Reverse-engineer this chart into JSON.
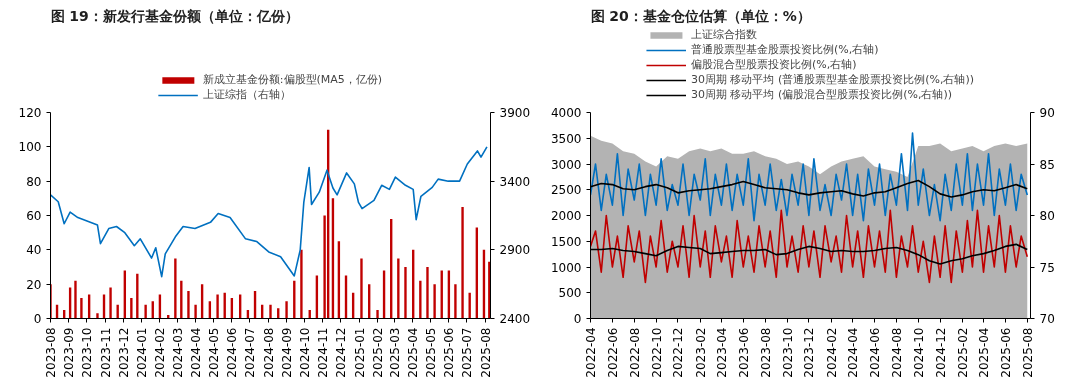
{
  "chart_data": [
    {
      "type": "bar",
      "title": "图 19：新发行基金份额（单位：亿份）",
      "legend": "top",
      "grid": false,
      "xlim": [
        "2023-08-01",
        "2025-08-10"
      ],
      "xticks": [
        {
          "value": "2023-08-01",
          "label": "2023-08"
        },
        {
          "value": "2023-09-01",
          "label": "2023-09"
        },
        {
          "value": "2023-10-01",
          "label": "2023-10"
        },
        {
          "value": "2023-11-01",
          "label": "2023-11"
        },
        {
          "value": "2023-12-01",
          "label": "2023-12"
        },
        {
          "value": "2024-01-01",
          "label": "2024-01"
        },
        {
          "value": "2024-02-01",
          "label": "2024-02"
        },
        {
          "value": "2024-03-01",
          "label": "2024-03"
        },
        {
          "value": "2024-04-01",
          "label": "2024-04"
        },
        {
          "value": "2024-05-01",
          "label": "2024-05"
        },
        {
          "value": "2024-06-01",
          "label": "2024-06"
        },
        {
          "value": "2024-07-01",
          "label": "2024-07"
        },
        {
          "value": "2024-08-01",
          "label": "2024-08"
        },
        {
          "value": "2024-09-01",
          "label": "2024-09"
        },
        {
          "value": "2024-10-01",
          "label": "2024-10"
        },
        {
          "value": "2024-11-01",
          "label": "2024-11"
        },
        {
          "value": "2024-12-01",
          "label": "2024-12"
        },
        {
          "value": "2025-01-01",
          "label": "2025-01"
        },
        {
          "value": "2025-02-01",
          "label": "2025-02"
        },
        {
          "value": "2025-03-01",
          "label": "2025-03"
        },
        {
          "value": "2025-04-01",
          "label": "2025-04"
        },
        {
          "value": "2025-05-01",
          "label": "2025-05"
        },
        {
          "value": "2025-06-01",
          "label": "2025-06"
        },
        {
          "value": "2025-07-01",
          "label": "2025-07"
        },
        {
          "value": "2025-08-01",
          "label": "2025-08"
        }
      ],
      "ylim": [
        0,
        120
      ],
      "yticks": [
        0,
        20,
        40,
        60,
        80,
        100,
        120
      ],
      "y2lim": [
        2400,
        3900
      ],
      "y2ticks": [
        2400,
        2900,
        3400,
        3900
      ],
      "series": [
        {
          "name": "新成立基金份额:偏股型(MA5，亿份)",
          "type": "bar",
          "color": "#c00000",
          "x": [
            "2023-08-01",
            "2023-08-12",
            "2023-08-24",
            "2023-09-03",
            "2023-09-12",
            "2023-09-22",
            "2023-10-05",
            "2023-10-19",
            "2023-10-30",
            "2023-11-10",
            "2023-11-22",
            "2023-12-04",
            "2023-12-15",
            "2023-12-25",
            "2024-01-08",
            "2024-01-20",
            "2024-02-01",
            "2024-02-15",
            "2024-02-27",
            "2024-03-08",
            "2024-03-20",
            "2024-04-01",
            "2024-04-12",
            "2024-04-25",
            "2024-05-08",
            "2024-05-20",
            "2024-06-01",
            "2024-06-15",
            "2024-06-28",
            "2024-07-10",
            "2024-07-22",
            "2024-08-05",
            "2024-08-18",
            "2024-09-01",
            "2024-09-14",
            "2024-09-26",
            "2024-10-10",
            "2024-10-22",
            "2024-11-04",
            "2024-11-10",
            "2024-11-18",
            "2024-11-28",
            "2024-12-10",
            "2024-12-22",
            "2025-01-05",
            "2025-01-18",
            "2025-02-01",
            "2025-02-12",
            "2025-02-24",
            "2025-03-08",
            "2025-03-20",
            "2025-04-02",
            "2025-04-14",
            "2025-04-26",
            "2025-05-08",
            "2025-05-20",
            "2025-06-01",
            "2025-06-12",
            "2025-06-24",
            "2025-07-06",
            "2025-07-18",
            "2025-07-30",
            "2025-08-08"
          ],
          "values": [
            20,
            8,
            5,
            18,
            22,
            12,
            14,
            3,
            14,
            18,
            8,
            28,
            12,
            26,
            8,
            10,
            14,
            2,
            35,
            22,
            16,
            8,
            20,
            10,
            14,
            15,
            12,
            14,
            5,
            16,
            8,
            8,
            6,
            10,
            22,
            40,
            5,
            25,
            60,
            110,
            70,
            45,
            25,
            15,
            35,
            20,
            5,
            28,
            58,
            35,
            30,
            40,
            22,
            30,
            20,
            28,
            28,
            20,
            65,
            15,
            53,
            40,
            33
          ]
        },
        {
          "name": "上证综指（右轴）",
          "type": "line",
          "axis": "y2",
          "color": "#0070c0",
          "x": [
            "2023-08-01",
            "2023-08-14",
            "2023-08-24",
            "2023-09-03",
            "2023-09-16",
            "2023-10-19",
            "2023-10-24",
            "2023-11-07",
            "2023-11-20",
            "2023-12-04",
            "2023-12-20",
            "2023-12-30",
            "2024-01-18",
            "2024-01-25",
            "2024-02-04",
            "2024-02-10",
            "2024-02-27",
            "2024-03-11",
            "2024-03-31",
            "2024-04-26",
            "2024-05-09",
            "2024-05-29",
            "2024-06-24",
            "2024-07-13",
            "2024-08-02",
            "2024-08-22",
            "2024-09-14",
            "2024-09-24",
            "2024-09-30",
            "2024-10-09",
            "2024-10-13",
            "2024-10-26",
            "2024-11-08",
            "2024-11-18",
            "2024-11-25",
            "2024-12-11",
            "2024-12-24",
            "2024-12-31",
            "2025-01-06",
            "2025-01-26",
            "2025-02-08",
            "2025-02-21",
            "2025-03-03",
            "2025-03-20",
            "2025-04-02",
            "2025-04-07",
            "2025-04-15",
            "2025-05-04",
            "2025-05-14",
            "2025-05-31",
            "2025-06-19",
            "2025-07-02",
            "2025-07-19",
            "2025-07-25",
            "2025-08-04"
          ],
          "values": [
            3300,
            3250,
            3090,
            3175,
            3135,
            3080,
            2945,
            3055,
            3070,
            3025,
            2930,
            2980,
            2840,
            2915,
            2705,
            2870,
            2995,
            3070,
            3055,
            3100,
            3165,
            3135,
            2980,
            2960,
            2885,
            2850,
            2710,
            2900,
            3245,
            3500,
            3230,
            3320,
            3480,
            3350,
            3300,
            3460,
            3380,
            3245,
            3200,
            3260,
            3370,
            3340,
            3430,
            3370,
            3340,
            3120,
            3290,
            3355,
            3415,
            3400,
            3400,
            3525,
            3620,
            3575,
            3650
          ]
        }
      ]
    },
    {
      "type": "line",
      "title": "图 20：基金仓位估算（单位：%）",
      "legend": "top",
      "grid": false,
      "xlim": [
        "2022-04-01",
        "2025-08-10"
      ],
      "xticks": [
        {
          "value": "2022-04-01",
          "label": "2022-04"
        },
        {
          "value": "2022-06-01",
          "label": "2022-06"
        },
        {
          "value": "2022-08-01",
          "label": "2022-08"
        },
        {
          "value": "2022-10-01",
          "label": "2022-10"
        },
        {
          "value": "2022-12-01",
          "label": "2022-12"
        },
        {
          "value": "2023-02-01",
          "label": "2023-02"
        },
        {
          "value": "2023-04-01",
          "label": "2023-04"
        },
        {
          "value": "2023-06-01",
          "label": "2023-06"
        },
        {
          "value": "2023-08-01",
          "label": "2023-08"
        },
        {
          "value": "2023-10-01",
          "label": "2023-10"
        },
        {
          "value": "2023-12-01",
          "label": "2023-12"
        },
        {
          "value": "2024-02-01",
          "label": "2024-02"
        },
        {
          "value": "2024-04-01",
          "label": "2024-04"
        },
        {
          "value": "2024-06-01",
          "label": "2024-06"
        },
        {
          "value": "2024-08-01",
          "label": "2024-08"
        },
        {
          "value": "2024-10-01",
          "label": "2024-10"
        },
        {
          "value": "2024-12-01",
          "label": "2024-12"
        },
        {
          "value": "2025-02-01",
          "label": "2025-02"
        },
        {
          "value": "2025-04-01",
          "label": "2025-04"
        },
        {
          "value": "2025-06-01",
          "label": "2025-06"
        },
        {
          "value": "2025-08-01",
          "label": "2025-08"
        }
      ],
      "ylim": [
        0,
        4000
      ],
      "yticks": [
        0,
        500,
        1000,
        1500,
        2000,
        2500,
        3000,
        3500,
        4000
      ],
      "y2lim": [
        70,
        90
      ],
      "y2ticks": [
        70,
        75,
        80,
        85,
        90
      ],
      "x": [
        "2022-04-01",
        "2022-05-01",
        "2022-06-01",
        "2022-07-01",
        "2022-08-01",
        "2022-09-01",
        "2022-10-01",
        "2022-11-01",
        "2022-12-01",
        "2023-01-01",
        "2023-02-01",
        "2023-03-01",
        "2023-04-01",
        "2023-05-01",
        "2023-06-01",
        "2023-07-01",
        "2023-08-01",
        "2023-09-01",
        "2023-10-01",
        "2023-11-01",
        "2023-12-01",
        "2024-01-01",
        "2024-02-01",
        "2024-03-01",
        "2024-04-01",
        "2024-05-01",
        "2024-06-01",
        "2024-07-01",
        "2024-08-01",
        "2024-09-01",
        "2024-10-01",
        "2024-11-01",
        "2024-12-01",
        "2025-01-01",
        "2025-02-01",
        "2025-03-01",
        "2025-04-01",
        "2025-05-01",
        "2025-06-01",
        "2025-07-01",
        "2025-08-01"
      ],
      "series": [
        {
          "name": "上证综合指数",
          "type": "area",
          "color": "#b3b3b3",
          "values": [
            3550,
            3450,
            3400,
            3250,
            3200,
            3050,
            2950,
            3150,
            3100,
            3250,
            3300,
            3250,
            3300,
            3200,
            3200,
            3250,
            3150,
            3100,
            3000,
            3050,
            2950,
            2800,
            2950,
            3050,
            3100,
            3150,
            2950,
            2900,
            2850,
            2750,
            3350,
            3350,
            3400,
            3250,
            3300,
            3350,
            3250,
            3350,
            3400,
            3350,
            3400
          ]
        },
        {
          "name": "普通股票型基金股票投资比例(%,右轴)",
          "axis": "y2",
          "color": "#0070c0",
          "x": [
            "2022-04-01",
            "2022-04-15",
            "2022-05-01",
            "2022-05-15",
            "2022-06-01",
            "2022-06-15",
            "2022-07-01",
            "2022-07-15",
            "2022-08-01",
            "2022-08-15",
            "2022-09-01",
            "2022-09-15",
            "2022-10-01",
            "2022-10-15",
            "2022-11-01",
            "2022-11-15",
            "2022-12-01",
            "2022-12-15",
            "2023-01-01",
            "2023-01-15",
            "2023-02-01",
            "2023-02-15",
            "2023-03-01",
            "2023-03-15",
            "2023-04-01",
            "2023-04-15",
            "2023-05-01",
            "2023-05-15",
            "2023-06-01",
            "2023-06-15",
            "2023-07-01",
            "2023-07-15",
            "2023-08-01",
            "2023-08-15",
            "2023-09-01",
            "2023-09-15",
            "2023-10-01",
            "2023-10-15",
            "2023-11-01",
            "2023-11-15",
            "2023-12-01",
            "2023-12-15",
            "2024-01-01",
            "2024-01-15",
            "2024-02-01",
            "2024-02-15",
            "2024-03-01",
            "2024-03-15",
            "2024-04-01",
            "2024-04-15",
            "2024-05-01",
            "2024-05-15",
            "2024-06-01",
            "2024-06-15",
            "2024-07-01",
            "2024-07-15",
            "2024-08-01",
            "2024-08-15",
            "2024-09-01",
            "2024-09-15",
            "2024-10-01",
            "2024-10-15",
            "2024-11-01",
            "2024-11-15",
            "2024-12-01",
            "2024-12-15",
            "2025-01-01",
            "2025-01-15",
            "2025-02-01",
            "2025-02-15",
            "2025-03-01",
            "2025-03-15",
            "2025-04-01",
            "2025-04-15",
            "2025-05-01",
            "2025-05-15",
            "2025-06-01",
            "2025-06-15",
            "2025-07-01",
            "2025-07-15",
            "2025-08-01"
          ],
          "values": [
            82,
            85,
            80.5,
            84,
            81,
            86,
            80,
            84.5,
            81.5,
            85,
            80,
            84,
            81,
            85.5,
            80.5,
            83,
            81,
            85,
            80,
            84,
            81.5,
            85.5,
            80,
            84,
            81,
            85,
            80.5,
            84,
            81,
            85.5,
            79.5,
            84,
            81,
            85,
            80.5,
            83.5,
            80,
            84,
            81,
            85,
            80,
            85.5,
            80.5,
            83,
            80,
            84,
            81.5,
            85,
            80,
            84,
            79.5,
            84.5,
            81,
            85,
            80,
            84,
            81,
            86,
            80.5,
            88,
            81,
            84.5,
            80,
            83,
            79.5,
            84,
            80.5,
            85,
            81,
            86,
            80.5,
            85,
            81,
            86,
            80,
            84.5,
            81,
            85,
            80.5,
            84,
            82
          ]
        },
        {
          "name": "偏股混合型股票投资比例(%,右轴)",
          "axis": "y2",
          "color": "#c00000",
          "x": [
            "2022-04-01",
            "2022-04-15",
            "2022-05-01",
            "2022-05-15",
            "2022-06-01",
            "2022-06-15",
            "2022-07-01",
            "2022-07-15",
            "2022-08-01",
            "2022-08-15",
            "2022-09-01",
            "2022-09-15",
            "2022-10-01",
            "2022-10-15",
            "2022-11-01",
            "2022-11-15",
            "2022-12-01",
            "2022-12-15",
            "2023-01-01",
            "2023-01-15",
            "2023-02-01",
            "2023-02-15",
            "2023-03-01",
            "2023-03-15",
            "2023-04-01",
            "2023-04-15",
            "2023-05-01",
            "2023-05-15",
            "2023-06-01",
            "2023-06-15",
            "2023-07-01",
            "2023-07-15",
            "2023-08-01",
            "2023-08-15",
            "2023-09-01",
            "2023-09-15",
            "2023-10-01",
            "2023-10-15",
            "2023-11-01",
            "2023-11-15",
            "2023-12-01",
            "2023-12-15",
            "2024-01-01",
            "2024-01-15",
            "2024-02-01",
            "2024-02-15",
            "2024-03-01",
            "2024-03-15",
            "2024-04-01",
            "2024-04-15",
            "2024-05-01",
            "2024-05-15",
            "2024-06-01",
            "2024-06-15",
            "2024-07-01",
            "2024-07-15",
            "2024-08-01",
            "2024-08-15",
            "2024-09-01",
            "2024-09-15",
            "2024-10-01",
            "2024-10-15",
            "2024-11-01",
            "2024-11-15",
            "2024-12-01",
            "2024-12-15",
            "2025-01-01",
            "2025-01-15",
            "2025-02-01",
            "2025-02-15",
            "2025-03-01",
            "2025-03-15",
            "2025-04-01",
            "2025-04-15",
            "2025-05-01",
            "2025-05-15",
            "2025-06-01",
            "2025-06-15",
            "2025-07-01",
            "2025-07-15",
            "2025-08-01"
          ],
          "values": [
            77,
            78.5,
            74.5,
            80,
            75,
            78,
            74,
            79,
            75.5,
            78.5,
            73.5,
            78,
            75,
            79.5,
            74.5,
            77.5,
            75,
            79,
            74,
            80,
            75,
            78.5,
            74,
            79,
            75.5,
            78,
            74,
            79.5,
            75,
            78,
            74.5,
            79,
            75,
            78.5,
            74,
            80.5,
            75,
            78,
            74.5,
            79,
            75,
            78.5,
            74,
            79,
            75.5,
            78,
            74.5,
            80,
            75,
            78.5,
            74,
            79,
            75,
            78.5,
            74.5,
            80.5,
            74,
            78,
            75,
            79,
            74.5,
            77.5,
            73.5,
            78,
            74,
            79,
            73.5,
            78.5,
            74.5,
            79.5,
            75,
            80.5,
            74.5,
            79,
            75,
            80,
            74.5,
            79,
            75,
            78,
            76
          ]
        },
        {
          "name": "30周期 移动平均 (普通股票型基金股票投资比例(%,右轴))",
          "axis": "y2",
          "color": "#000000",
          "values": [
            82.8,
            83.1,
            83.0,
            82.6,
            82.5,
            82.8,
            83.0,
            82.7,
            82.2,
            82.4,
            82.5,
            82.6,
            82.8,
            83.0,
            83.3,
            83.0,
            82.7,
            82.6,
            82.5,
            82.2,
            82.0,
            82.2,
            82.3,
            82.4,
            82.1,
            81.9,
            82.2,
            82.3,
            82.7,
            83.1,
            83.4,
            82.8,
            82.1,
            81.8,
            82.0,
            82.3,
            82.5,
            82.4,
            82.7,
            83.0,
            82.6
          ]
        },
        {
          "name": "30周期 移动平均 (偏股混合型股票投资比例(%,右轴))",
          "axis": "y2",
          "color": "#000000",
          "values": [
            76.7,
            76.7,
            76.8,
            76.6,
            76.5,
            76.3,
            76.1,
            76.6,
            77.0,
            76.9,
            76.8,
            76.3,
            76.4,
            76.5,
            76.6,
            76.6,
            76.7,
            76.2,
            76.3,
            76.7,
            77.0,
            76.8,
            76.5,
            76.6,
            76.5,
            76.5,
            76.6,
            76.8,
            76.9,
            76.6,
            76.2,
            75.6,
            75.3,
            75.6,
            75.8,
            76.1,
            76.3,
            76.6,
            77.0,
            77.2,
            76.7
          ]
        }
      ]
    }
  ]
}
